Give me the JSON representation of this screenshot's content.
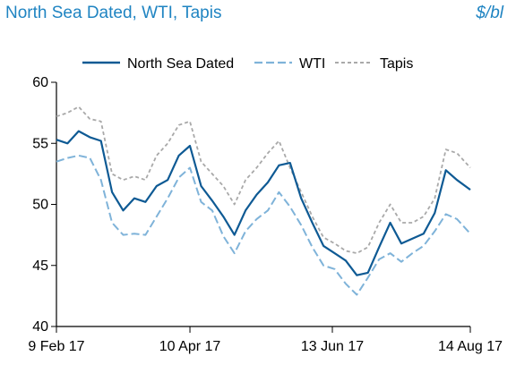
{
  "header": {
    "title": "North Sea Dated, WTI, Tapis",
    "unit": "$/bl"
  },
  "colors": {
    "north_sea": "#0e5a94",
    "wti": "#7fb3d9",
    "tapis": "#a9a9a9",
    "title": "#1f84c2"
  },
  "chart_data": {
    "type": "line",
    "title": "North Sea Dated, WTI, Tapis",
    "ylabel": "$/bl",
    "ylim": [
      40,
      60
    ],
    "yticks": [
      40,
      45,
      50,
      55,
      60
    ],
    "xlim": [
      "2017-02-09",
      "2017-08-14"
    ],
    "xticks": [
      "2017-02-09",
      "2017-04-10",
      "2017-06-13",
      "2017-08-14"
    ],
    "xtick_labels": [
      "9 Feb 17",
      "10 Apr 17",
      "13 Jun 17",
      "14 Aug 17"
    ],
    "legend": {
      "position": "top",
      "entries": [
        "North Sea Dated",
        "WTI",
        "Tapis"
      ]
    },
    "grid": false,
    "x": [
      "2017-02-09",
      "2017-02-14",
      "2017-02-19",
      "2017-02-24",
      "2017-03-01",
      "2017-03-06",
      "2017-03-11",
      "2017-03-16",
      "2017-03-21",
      "2017-03-26",
      "2017-03-31",
      "2017-04-05",
      "2017-04-10",
      "2017-04-15",
      "2017-04-20",
      "2017-04-25",
      "2017-04-30",
      "2017-05-05",
      "2017-05-10",
      "2017-05-15",
      "2017-05-20",
      "2017-05-25",
      "2017-05-30",
      "2017-06-04",
      "2017-06-09",
      "2017-06-14",
      "2017-06-19",
      "2017-06-24",
      "2017-06-29",
      "2017-07-04",
      "2017-07-09",
      "2017-07-14",
      "2017-07-19",
      "2017-07-24",
      "2017-07-29",
      "2017-08-03",
      "2017-08-08",
      "2017-08-14"
    ],
    "series": [
      {
        "name": "North Sea Dated",
        "values": [
          55.3,
          55.0,
          56.0,
          55.5,
          55.2,
          51.0,
          49.5,
          50.5,
          50.2,
          51.5,
          52.0,
          54.0,
          54.8,
          51.5,
          50.3,
          49.0,
          47.5,
          49.5,
          50.8,
          51.8,
          53.2,
          53.4,
          50.5,
          48.5,
          46.6,
          46.0,
          45.4,
          44.2,
          44.4,
          46.5,
          48.5,
          46.8,
          47.2,
          47.6,
          49.3,
          52.8,
          52.0,
          51.2
        ]
      },
      {
        "name": "WTI",
        "values": [
          53.5,
          53.8,
          54.0,
          53.8,
          52.0,
          48.5,
          47.5,
          47.6,
          47.5,
          49.0,
          50.5,
          52.2,
          53.0,
          50.2,
          49.5,
          47.4,
          46.0,
          47.8,
          48.8,
          49.5,
          51.0,
          49.8,
          48.3,
          46.5,
          45.0,
          44.7,
          43.5,
          42.6,
          44.0,
          45.5,
          46.0,
          45.3,
          46.0,
          46.6,
          47.8,
          49.2,
          48.8,
          47.6
        ]
      },
      {
        "name": "Tapis",
        "values": [
          57.2,
          57.5,
          58.0,
          57.0,
          56.8,
          52.5,
          52.0,
          52.3,
          52.0,
          54.0,
          55.0,
          56.5,
          56.8,
          53.5,
          52.5,
          51.5,
          50.0,
          52.0,
          53.0,
          54.2,
          55.2,
          53.0,
          51.0,
          49.0,
          47.3,
          46.8,
          46.2,
          46.0,
          46.5,
          48.5,
          50.0,
          48.5,
          48.5,
          49.0,
          50.5,
          54.5,
          54.2,
          53.0
        ]
      }
    ]
  }
}
